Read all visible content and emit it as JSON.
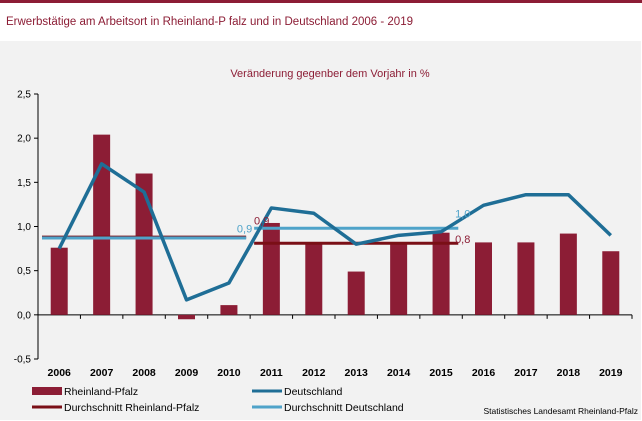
{
  "page": {
    "title": "Erwerbstätige  am  Arbeitsort  in  Rheinland-P falz  und  in Deutschland  2006  - 2019"
  },
  "chart_data": {
    "type": "bar",
    "title": "",
    "subtitle": "Veränderung  gegenber dem Vorjahr in %",
    "xlabel": "",
    "ylabel": "",
    "categories": [
      "2006",
      "2007",
      "2008",
      "2009",
      "2010",
      "2011",
      "2012",
      "2013",
      "2014",
      "2015",
      "2016",
      "2017",
      "2018",
      "2019"
    ],
    "ylim": [
      -0.5,
      2.5
    ],
    "yticks": [
      -0.5,
      0.0,
      0.5,
      1.0,
      1.5,
      2.0,
      2.5
    ],
    "ytick_labels": [
      "-0,5",
      "0,0",
      "0,5",
      "1,0",
      "1,5",
      "2,0",
      "2,5"
    ],
    "grid": false,
    "legend_position": "bottom",
    "series": [
      {
        "name": "Rheinland-Pfalz",
        "kind": "bar",
        "color": "#8c1d35",
        "values": [
          0.76,
          2.04,
          1.6,
          -0.05,
          0.11,
          1.04,
          0.8,
          0.49,
          0.8,
          0.93,
          0.82,
          0.82,
          0.92,
          0.72
        ]
      },
      {
        "name": "Deutschland",
        "kind": "line",
        "color": "#1f6e96",
        "values": [
          0.75,
          1.71,
          1.39,
          0.17,
          0.36,
          1.21,
          1.15,
          0.8,
          0.9,
          0.94,
          1.24,
          1.36,
          1.36,
          0.9
        ]
      },
      {
        "name": "Durchschnitt Rheinland-Pfalz",
        "kind": "hline",
        "color": "#7a0f16",
        "segments": [
          {
            "from": "2006",
            "to": "2010",
            "value": 0.88
          },
          {
            "from": "2011",
            "to": "2015",
            "value": 0.81
          }
        ]
      },
      {
        "name": "Durchschnitt Deutschland",
        "kind": "hline",
        "color": "#4fa3c9",
        "segments": [
          {
            "from": "2006",
            "to": "2010",
            "value": 0.87
          },
          {
            "from": "2011",
            "to": "2015",
            "value": 0.98
          }
        ]
      }
    ],
    "annotations": [
      {
        "text": "0,9",
        "color": "#8c1d35",
        "x": "2011",
        "value": 1.0
      },
      {
        "text": "0,9",
        "color": "#4fa3c9",
        "x": "2010",
        "value": 0.91
      },
      {
        "text": "1,0",
        "color": "#4fa3c9",
        "x": "2015",
        "value": 1.08
      },
      {
        "text": "0,8",
        "color": "#8c1d35",
        "x": "2015",
        "value": 0.79
      }
    ],
    "source": "Statistisches Landesamt Rheinland-Pfalz"
  }
}
